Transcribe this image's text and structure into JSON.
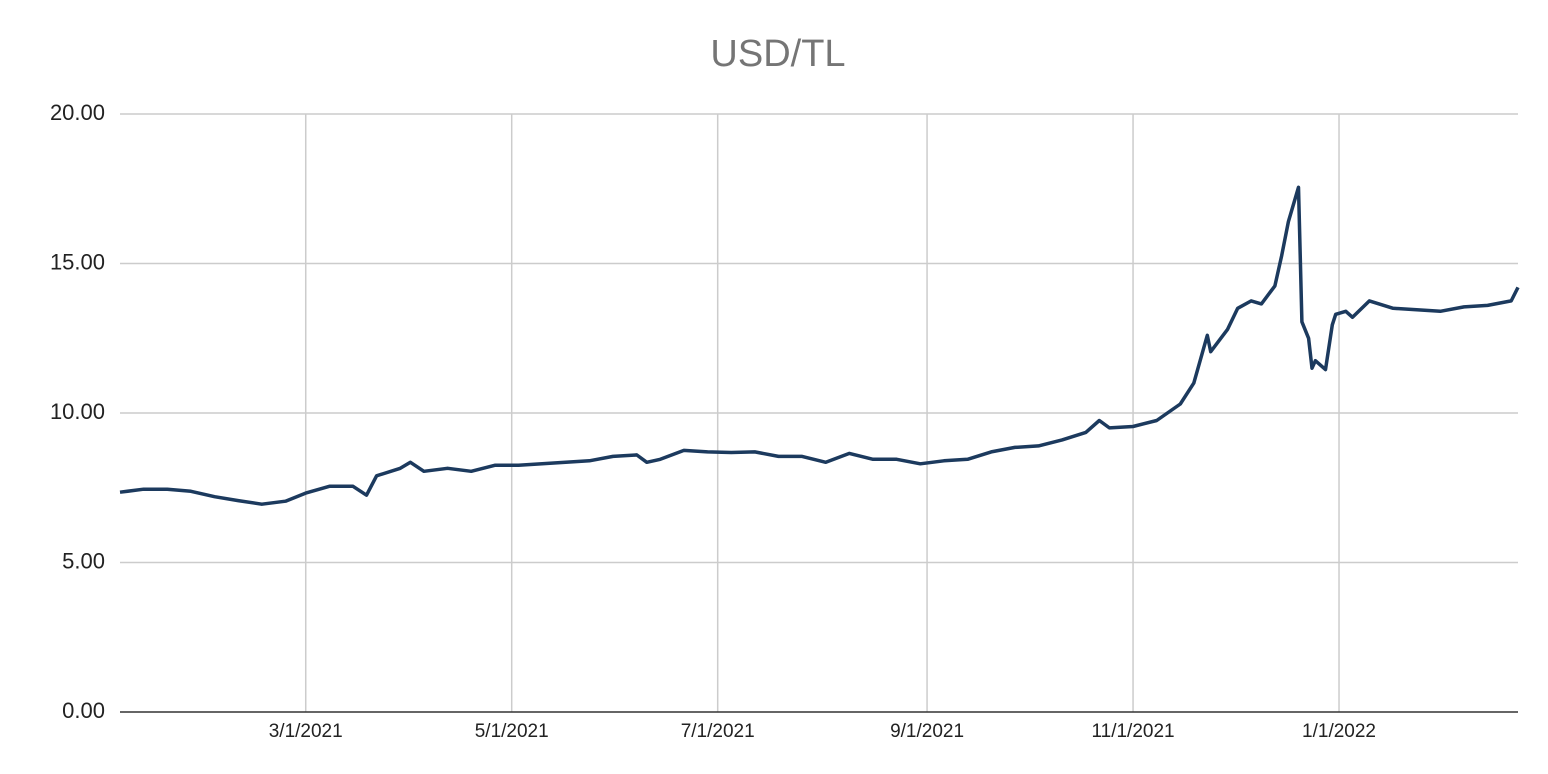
{
  "chart_data": {
    "type": "line",
    "title": "USD/TL",
    "x": [
      "1/5/2021",
      "1/12/2021",
      "1/19/2021",
      "1/26/2021",
      "2/2/2021",
      "2/9/2021",
      "2/16/2021",
      "2/23/2021",
      "3/1/2021",
      "3/8/2021",
      "3/15/2021",
      "3/19/2021",
      "3/22/2021",
      "3/29/2021",
      "4/1/2021",
      "4/5/2021",
      "4/12/2021",
      "4/19/2021",
      "4/26/2021",
      "5/3/2021",
      "5/10/2021",
      "5/17/2021",
      "5/24/2021",
      "5/31/2021",
      "6/7/2021",
      "6/10/2021",
      "6/14/2021",
      "6/21/2021",
      "6/28/2021",
      "7/5/2021",
      "7/12/2021",
      "7/19/2021",
      "7/26/2021",
      "8/2/2021",
      "8/9/2021",
      "8/16/2021",
      "8/23/2021",
      "8/30/2021",
      "9/6/2021",
      "9/13/2021",
      "9/20/2021",
      "9/27/2021",
      "10/4/2021",
      "10/11/2021",
      "10/18/2021",
      "10/22/2021",
      "10/25/2021",
      "11/1/2021",
      "11/8/2021",
      "11/15/2021",
      "11/19/2021",
      "11/23/2021",
      "11/24/2021",
      "11/29/2021",
      "12/2/2021",
      "12/6/2021",
      "12/9/2021",
      "12/13/2021",
      "12/15/2021",
      "12/17/2021",
      "12/20/2021",
      "12/21/2021",
      "12/23/2021",
      "12/24/2021",
      "12/25/2021",
      "12/28/2021",
      "12/30/2021",
      "12/31/2021",
      "1/3/2022",
      "1/5/2022",
      "1/10/2022",
      "1/17/2022",
      "1/24/2022",
      "1/31/2022",
      "2/7/2022",
      "2/14/2022",
      "2/21/2022",
      "2/23/2022"
    ],
    "series": [
      {
        "name": "USD/TL",
        "color": "#1c3a5e",
        "values": [
          7.35,
          7.45,
          7.45,
          7.38,
          7.2,
          7.07,
          6.95,
          7.05,
          7.32,
          7.55,
          7.55,
          7.25,
          7.9,
          8.15,
          8.35,
          8.05,
          8.15,
          8.05,
          8.25,
          8.25,
          8.3,
          8.35,
          8.4,
          8.55,
          8.6,
          8.35,
          8.45,
          8.75,
          8.7,
          8.68,
          8.7,
          8.55,
          8.55,
          8.35,
          8.65,
          8.45,
          8.45,
          8.3,
          8.4,
          8.45,
          8.7,
          8.85,
          8.9,
          9.1,
          9.35,
          9.75,
          9.5,
          9.55,
          9.75,
          10.3,
          11.0,
          12.6,
          12.05,
          12.8,
          13.5,
          13.75,
          13.65,
          14.25,
          15.25,
          16.4,
          17.55,
          13.05,
          12.5,
          11.5,
          11.75,
          11.45,
          12.95,
          13.3,
          13.4,
          13.2,
          13.75,
          13.5,
          13.45,
          13.4,
          13.55,
          13.6,
          13.75,
          14.2
        ]
      }
    ],
    "xlim": [
      "1/5/2021",
      "2/23/2022"
    ],
    "xticks": [
      "3/1/2021",
      "5/1/2021",
      "7/1/2021",
      "9/1/2021",
      "11/1/2021",
      "1/1/2022"
    ],
    "ylim": [
      0,
      20
    ],
    "yticks": [
      {
        "value": 0,
        "label": "0.00"
      },
      {
        "value": 5,
        "label": "5.00"
      },
      {
        "value": 10,
        "label": "10.00"
      },
      {
        "value": 15,
        "label": "15.00"
      },
      {
        "value": 20,
        "label": "20.00"
      }
    ],
    "grid": true
  }
}
